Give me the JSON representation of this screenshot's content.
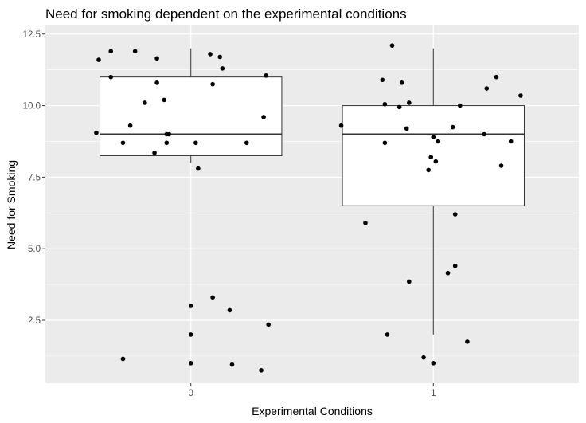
{
  "chart_data": {
    "type": "boxplot",
    "title": "Need for smoking dependent on the experimental conditions",
    "xlabel": "Experimental Conditions",
    "ylabel": "Need for Smoking",
    "categories": [
      "0",
      "1"
    ],
    "y_ticks": [
      "2.5",
      "5.0",
      "7.5",
      "10.0",
      "12.5"
    ],
    "ylim": [
      0.3,
      12.8
    ],
    "xlim": [
      -0.6,
      1.6
    ],
    "grid": true,
    "colors": {
      "panel": "#ebebeb",
      "grid": "#ffffff",
      "box_fill": "#ffffff",
      "box_stroke": "#333333",
      "point": "#000000"
    },
    "boxes": [
      {
        "category": "0",
        "whisker_low": 8.0,
        "q1": 8.25,
        "median": 9.0,
        "q3": 11.0,
        "whisker_high": 12.0
      },
      {
        "category": "1",
        "whisker_low": 2.0,
        "q1": 6.5,
        "median": 9.0,
        "q3": 10.0,
        "whisker_high": 12.0
      }
    ],
    "points": [
      {
        "x": -0.38,
        "y": 11.6
      },
      {
        "x": -0.33,
        "y": 11.9
      },
      {
        "x": -0.23,
        "y": 11.9
      },
      {
        "x": -0.14,
        "y": 11.65
      },
      {
        "x": 0.08,
        "y": 11.8
      },
      {
        "x": 0.12,
        "y": 11.7
      },
      {
        "x": 0.13,
        "y": 11.3
      },
      {
        "x": 0.31,
        "y": 11.05
      },
      {
        "x": -0.33,
        "y": 11.0
      },
      {
        "x": -0.14,
        "y": 10.8
      },
      {
        "x": 0.09,
        "y": 10.75
      },
      {
        "x": -0.19,
        "y": 10.1
      },
      {
        "x": -0.11,
        "y": 10.2
      },
      {
        "x": 0.3,
        "y": 9.6
      },
      {
        "x": -0.25,
        "y": 9.3
      },
      {
        "x": -0.39,
        "y": 9.05
      },
      {
        "x": -0.1,
        "y": 9.0
      },
      {
        "x": -0.09,
        "y": 9.0
      },
      {
        "x": -0.28,
        "y": 8.7
      },
      {
        "x": -0.1,
        "y": 8.7
      },
      {
        "x": 0.02,
        "y": 8.7
      },
      {
        "x": 0.23,
        "y": 8.7
      },
      {
        "x": -0.15,
        "y": 8.35
      },
      {
        "x": 0.03,
        "y": 7.8
      },
      {
        "x": 0.09,
        "y": 3.3
      },
      {
        "x": 0.0,
        "y": 3.0
      },
      {
        "x": 0.16,
        "y": 2.85
      },
      {
        "x": 0.32,
        "y": 2.35
      },
      {
        "x": 0.0,
        "y": 2.0
      },
      {
        "x": -0.28,
        "y": 1.15
      },
      {
        "x": 0.0,
        "y": 1.0
      },
      {
        "x": 0.17,
        "y": 0.95
      },
      {
        "x": 0.29,
        "y": 0.75
      },
      {
        "x": 0.83,
        "y": 12.1
      },
      {
        "x": 1.26,
        "y": 11.0
      },
      {
        "x": 0.79,
        "y": 10.9
      },
      {
        "x": 0.87,
        "y": 10.8
      },
      {
        "x": 1.22,
        "y": 10.6
      },
      {
        "x": 1.36,
        "y": 10.35
      },
      {
        "x": 0.8,
        "y": 10.05
      },
      {
        "x": 0.9,
        "y": 10.1
      },
      {
        "x": 0.86,
        "y": 9.95
      },
      {
        "x": 1.11,
        "y": 10.0
      },
      {
        "x": 0.62,
        "y": 9.3
      },
      {
        "x": 1.08,
        "y": 9.25
      },
      {
        "x": 0.89,
        "y": 9.2
      },
      {
        "x": 1.21,
        "y": 9.0
      },
      {
        "x": 1.0,
        "y": 8.9
      },
      {
        "x": 0.8,
        "y": 8.7
      },
      {
        "x": 1.02,
        "y": 8.75
      },
      {
        "x": 1.32,
        "y": 8.75
      },
      {
        "x": 0.99,
        "y": 8.2
      },
      {
        "x": 1.01,
        "y": 8.05
      },
      {
        "x": 1.28,
        "y": 7.9
      },
      {
        "x": 0.98,
        "y": 7.75
      },
      {
        "x": 1.09,
        "y": 6.2
      },
      {
        "x": 0.72,
        "y": 5.9
      },
      {
        "x": 1.09,
        "y": 4.4
      },
      {
        "x": 1.06,
        "y": 4.15
      },
      {
        "x": 0.9,
        "y": 3.85
      },
      {
        "x": 0.81,
        "y": 2.0
      },
      {
        "x": 1.14,
        "y": 1.75
      },
      {
        "x": 0.96,
        "y": 1.2
      },
      {
        "x": 1.0,
        "y": 1.0
      }
    ]
  }
}
